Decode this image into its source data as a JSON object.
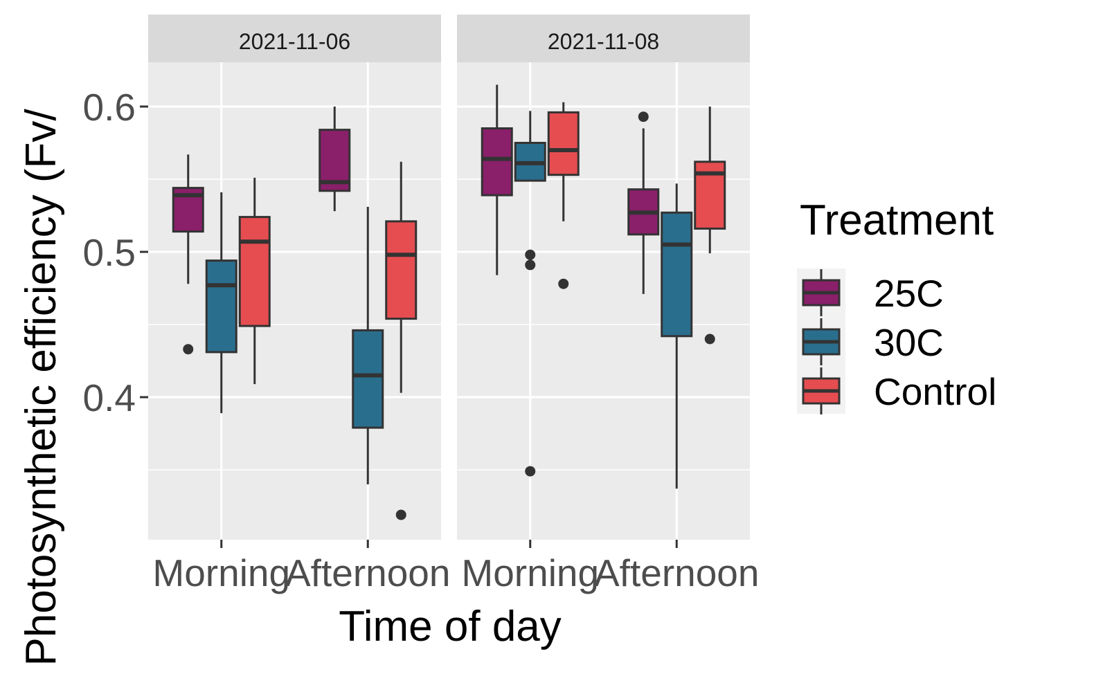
{
  "chart_data": {
    "type": "boxplot",
    "xlabel": "Time of day",
    "ylabel": "Photosynthetic efficiency (Fv/",
    "ylim": [
      0.3,
      0.63
    ],
    "yticks": [
      0.4,
      0.5,
      0.6
    ],
    "ytick_labels": [
      "0.4",
      "0.5",
      "0.6"
    ],
    "categories": [
      "Morning",
      "Afternoon"
    ],
    "legend": {
      "title": "Treatment",
      "position": "right",
      "items": [
        {
          "label": "25C",
          "color": "#8a1f6a"
        },
        {
          "label": "30C",
          "color": "#2a6e8e"
        },
        {
          "label": "Control",
          "color": "#e64d50"
        }
      ]
    },
    "grid": true,
    "panels": [
      {
        "facet": "2021-11-06",
        "groups": [
          {
            "category": "Morning",
            "boxes": [
              {
                "series": "25C",
                "whisker_low": 0.478,
                "q1": 0.514,
                "median": 0.539,
                "q3": 0.544,
                "whisker_high": 0.567,
                "outliers": [
                  0.433
                ]
              },
              {
                "series": "30C",
                "whisker_low": 0.389,
                "q1": 0.431,
                "median": 0.477,
                "q3": 0.494,
                "whisker_high": 0.541,
                "outliers": []
              },
              {
                "series": "Control",
                "whisker_low": 0.409,
                "q1": 0.449,
                "median": 0.507,
                "q3": 0.524,
                "whisker_high": 0.551,
                "outliers": []
              }
            ]
          },
          {
            "category": "Afternoon",
            "boxes": [
              {
                "series": "25C",
                "whisker_low": 0.528,
                "q1": 0.542,
                "median": 0.548,
                "q3": 0.584,
                "whisker_high": 0.6,
                "outliers": []
              },
              {
                "series": "30C",
                "whisker_low": 0.34,
                "q1": 0.379,
                "median": 0.415,
                "q3": 0.446,
                "whisker_high": 0.531,
                "outliers": []
              },
              {
                "series": "Control",
                "whisker_low": 0.403,
                "q1": 0.454,
                "median": 0.498,
                "q3": 0.521,
                "whisker_high": 0.562,
                "outliers": [
                  0.319
                ]
              }
            ]
          }
        ]
      },
      {
        "facet": "2021-11-08",
        "groups": [
          {
            "category": "Morning",
            "boxes": [
              {
                "series": "25C",
                "whisker_low": 0.484,
                "q1": 0.539,
                "median": 0.564,
                "q3": 0.585,
                "whisker_high": 0.615,
                "outliers": []
              },
              {
                "series": "30C",
                "whisker_low": 0.549,
                "q1": 0.549,
                "median": 0.561,
                "q3": 0.575,
                "whisker_high": 0.597,
                "outliers": [
                  0.498,
                  0.491,
                  0.349
                ]
              },
              {
                "series": "Control",
                "whisker_low": 0.521,
                "q1": 0.553,
                "median": 0.57,
                "q3": 0.596,
                "whisker_high": 0.603,
                "outliers": [
                  0.478
                ]
              }
            ]
          },
          {
            "category": "Afternoon",
            "boxes": [
              {
                "series": "25C",
                "whisker_low": 0.471,
                "q1": 0.512,
                "median": 0.527,
                "q3": 0.543,
                "whisker_high": 0.585,
                "outliers": [
                  0.593
                ]
              },
              {
                "series": "30C",
                "whisker_low": 0.337,
                "q1": 0.442,
                "median": 0.505,
                "q3": 0.527,
                "whisker_high": 0.547,
                "outliers": []
              },
              {
                "series": "Control",
                "whisker_low": 0.499,
                "q1": 0.516,
                "median": 0.554,
                "q3": 0.562,
                "whisker_high": 0.6,
                "outliers": [
                  0.44
                ]
              }
            ]
          }
        ]
      }
    ]
  }
}
